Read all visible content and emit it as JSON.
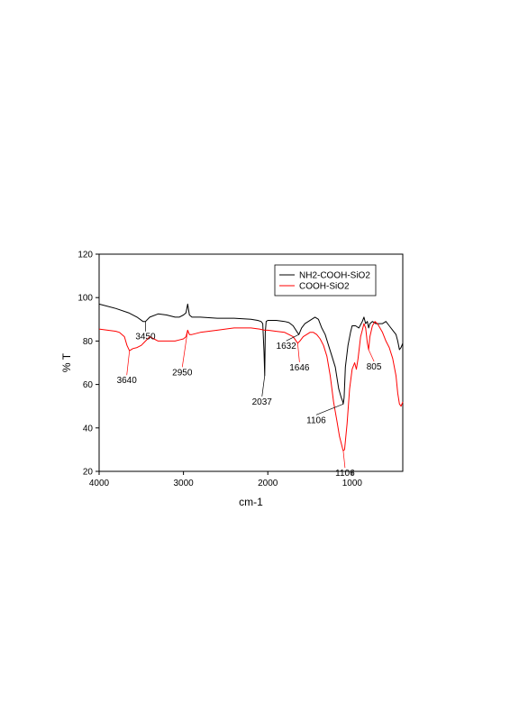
{
  "chart_data": {
    "type": "line",
    "xlabel": "cm-1",
    "ylabel": "% T",
    "xlim": [
      4000,
      400
    ],
    "ylim": [
      20,
      120
    ],
    "x_ticks": [
      4000,
      3000,
      2000,
      1000
    ],
    "y_ticks": [
      20,
      40,
      60,
      80,
      100,
      120
    ],
    "x_tick_labels": [
      "4000",
      "3000",
      "2000",
      "1000"
    ],
    "y_tick_labels": [
      "20",
      "40",
      "60",
      "80",
      "100",
      "120"
    ],
    "grid": false,
    "legend_position": "top-right",
    "series": [
      {
        "name": "NH2-COOH-SiO2",
        "color": "#000000",
        "x": [
          4000,
          3800,
          3650,
          3550,
          3480,
          3450,
          3400,
          3300,
          3200,
          3100,
          3050,
          3000,
          2970,
          2950,
          2930,
          2900,
          2850,
          2800,
          2600,
          2400,
          2200,
          2120,
          2080,
          2060,
          2045,
          2037,
          2030,
          2020,
          2000,
          1900,
          1800,
          1750,
          1700,
          1650,
          1632,
          1600,
          1560,
          1520,
          1480,
          1440,
          1400,
          1360,
          1320,
          1280,
          1240,
          1200,
          1160,
          1130,
          1110,
          1106,
          1095,
          1080,
          1050,
          1020,
          1000,
          960,
          920,
          880,
          860,
          840,
          820,
          805,
          790,
          760,
          720,
          680,
          640,
          600,
          560,
          520,
          480,
          460,
          440,
          420,
          400
        ],
        "y": [
          97,
          95,
          93,
          91,
          89,
          89,
          91,
          92.5,
          92,
          91,
          91,
          92,
          93,
          97,
          92,
          91,
          91,
          91,
          90.5,
          90.5,
          90,
          89.5,
          89,
          88,
          75,
          64,
          84,
          89,
          89.5,
          89.5,
          89,
          88.5,
          87,
          84,
          83,
          86,
          88,
          89,
          90,
          91,
          90,
          86,
          83,
          78,
          73,
          68,
          58,
          54,
          52,
          51,
          54,
          68,
          78,
          84,
          87,
          87,
          86,
          89,
          91,
          88,
          89,
          86,
          88,
          89,
          88,
          88,
          88,
          89,
          87,
          85,
          83,
          80,
          76,
          77,
          79
        ]
      },
      {
        "name": "COOH-SiO2",
        "color": "#ff0000",
        "x": [
          4000,
          3900,
          3800,
          3760,
          3700,
          3670,
          3640,
          3600,
          3550,
          3500,
          3450,
          3400,
          3350,
          3300,
          3200,
          3100,
          3050,
          3000,
          2970,
          2950,
          2930,
          2900,
          2800,
          2600,
          2400,
          2200,
          2100,
          2037,
          2000,
          1900,
          1800,
          1700,
          1646,
          1620,
          1580,
          1540,
          1500,
          1460,
          1420,
          1380,
          1340,
          1300,
          1260,
          1220,
          1180,
          1150,
          1130,
          1110,
          1106,
          1090,
          1060,
          1030,
          1000,
          970,
          950,
          930,
          900,
          880,
          860,
          840,
          820,
          805,
          790,
          760,
          730,
          700,
          670,
          640,
          600,
          560,
          520,
          480,
          460,
          440,
          420,
          400
        ],
        "y": [
          85.5,
          85,
          84.5,
          84,
          82,
          78,
          75.5,
          76.5,
          77,
          78,
          80,
          82,
          81,
          80,
          80,
          80,
          80.5,
          81,
          82,
          85,
          83,
          83,
          84,
          85,
          86,
          86,
          85.5,
          85,
          85,
          84.5,
          84,
          82,
          79,
          80,
          82,
          83,
          84,
          84,
          83,
          81,
          78,
          73,
          64,
          52,
          43,
          36,
          33,
          30,
          29.5,
          30,
          42,
          58,
          67,
          70,
          67,
          72,
          82,
          85,
          88,
          86,
          79,
          76,
          82,
          87,
          89,
          88,
          86,
          84,
          80,
          77,
          72,
          64,
          56,
          51,
          50,
          52
        ]
      }
    ],
    "annotations": [
      {
        "text": "3450",
        "x": 3450,
        "y": 89,
        "series": 0
      },
      {
        "text": "3640",
        "x": 3640,
        "y": 75.5,
        "series": 1
      },
      {
        "text": "2950",
        "x": 2950,
        "y": 85,
        "series": 1
      },
      {
        "text": "2037",
        "x": 2037,
        "y": 64,
        "series": 0
      },
      {
        "text": "1632",
        "x": 1632,
        "y": 83,
        "series": 0
      },
      {
        "text": "1646",
        "x": 1646,
        "y": 79,
        "series": 1
      },
      {
        "text": "1106",
        "x": 1106,
        "y": 51,
        "series": 0
      },
      {
        "text": "1106",
        "x": 1106,
        "y": 29.5,
        "series": 1
      },
      {
        "text": "805",
        "x": 805,
        "y": 76,
        "series": 1
      }
    ]
  }
}
